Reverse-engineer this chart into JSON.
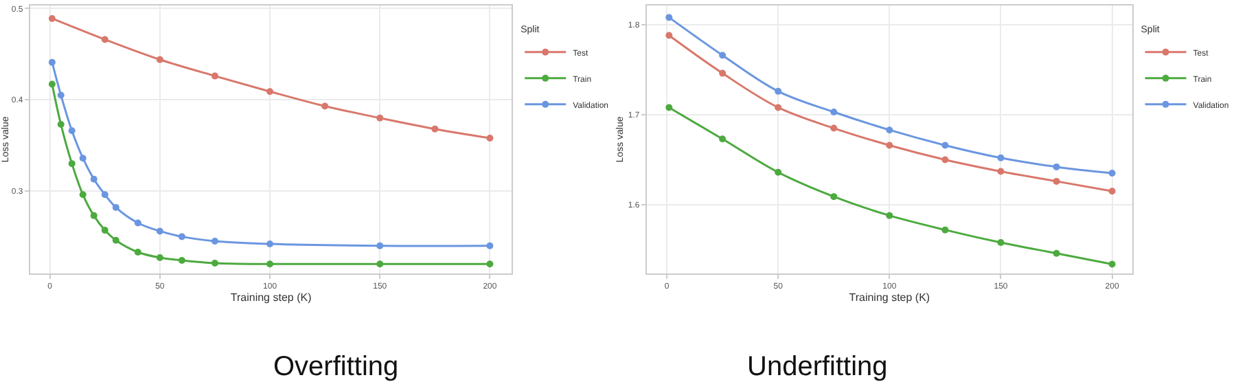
{
  "chart_data": [
    {
      "type": "line",
      "title": "Overfitting",
      "xlabel": "Training step (K)",
      "ylabel": "Loss value",
      "legend_title": "Split",
      "legend": "right",
      "grid": true,
      "marker": "circle",
      "line_style": "solid",
      "xlim": [
        -9,
        210
      ],
      "xticks": [
        0,
        50,
        100,
        150,
        200
      ],
      "ylim": [
        0.21,
        0.503
      ],
      "yticks": [
        0.3,
        0.4,
        0.5
      ],
      "series": [
        {
          "name": "Test",
          "color": "#d9776b",
          "x": [
            1,
            25,
            50,
            75,
            100,
            125,
            150,
            175,
            200
          ],
          "values": [
            0.489,
            0.466,
            0.444,
            0.426,
            0.409,
            0.393,
            0.38,
            0.368,
            0.358
          ]
        },
        {
          "name": "Train",
          "color": "#4caa3f",
          "x": [
            1,
            5,
            10,
            15,
            20,
            25,
            30,
            40,
            50,
            60,
            75,
            100,
            150,
            200
          ],
          "values": [
            0.417,
            0.373,
            0.33,
            0.296,
            0.273,
            0.257,
            0.246,
            0.233,
            0.227,
            0.224,
            0.221,
            0.22,
            0.22,
            0.22
          ]
        },
        {
          "name": "Validation",
          "color": "#6a96e0",
          "x": [
            1,
            5,
            10,
            15,
            20,
            25,
            30,
            40,
            50,
            60,
            75,
            100,
            150,
            200
          ],
          "values": [
            0.441,
            0.405,
            0.366,
            0.336,
            0.313,
            0.296,
            0.282,
            0.265,
            0.256,
            0.25,
            0.245,
            0.242,
            0.24,
            0.24
          ]
        }
      ]
    },
    {
      "type": "line",
      "title": "Underfitting",
      "xlabel": "Training step (K)",
      "ylabel": "Loss value",
      "legend_title": "Split",
      "legend": "right",
      "grid": true,
      "marker": "circle",
      "line_style": "solid",
      "xlim": [
        -9,
        209
      ],
      "xticks": [
        0,
        50,
        100,
        150,
        200
      ],
      "ylim": [
        1.524,
        1.821
      ],
      "yticks": [
        1.6,
        1.7,
        1.8
      ],
      "series": [
        {
          "name": "Test",
          "color": "#d9776b",
          "x": [
            1,
            25,
            50,
            75,
            100,
            125,
            150,
            175,
            200
          ],
          "values": [
            1.788,
            1.746,
            1.708,
            1.685,
            1.666,
            1.65,
            1.637,
            1.626,
            1.615
          ]
        },
        {
          "name": "Train",
          "color": "#4caa3f",
          "x": [
            1,
            25,
            50,
            75,
            100,
            125,
            150,
            175,
            200
          ],
          "values": [
            1.708,
            1.673,
            1.636,
            1.609,
            1.588,
            1.572,
            1.558,
            1.546,
            1.534
          ]
        },
        {
          "name": "Validation",
          "color": "#6a96e0",
          "x": [
            1,
            25,
            50,
            75,
            100,
            125,
            150,
            175,
            200
          ],
          "values": [
            1.808,
            1.766,
            1.726,
            1.703,
            1.683,
            1.666,
            1.652,
            1.642,
            1.635
          ]
        }
      ]
    }
  ]
}
